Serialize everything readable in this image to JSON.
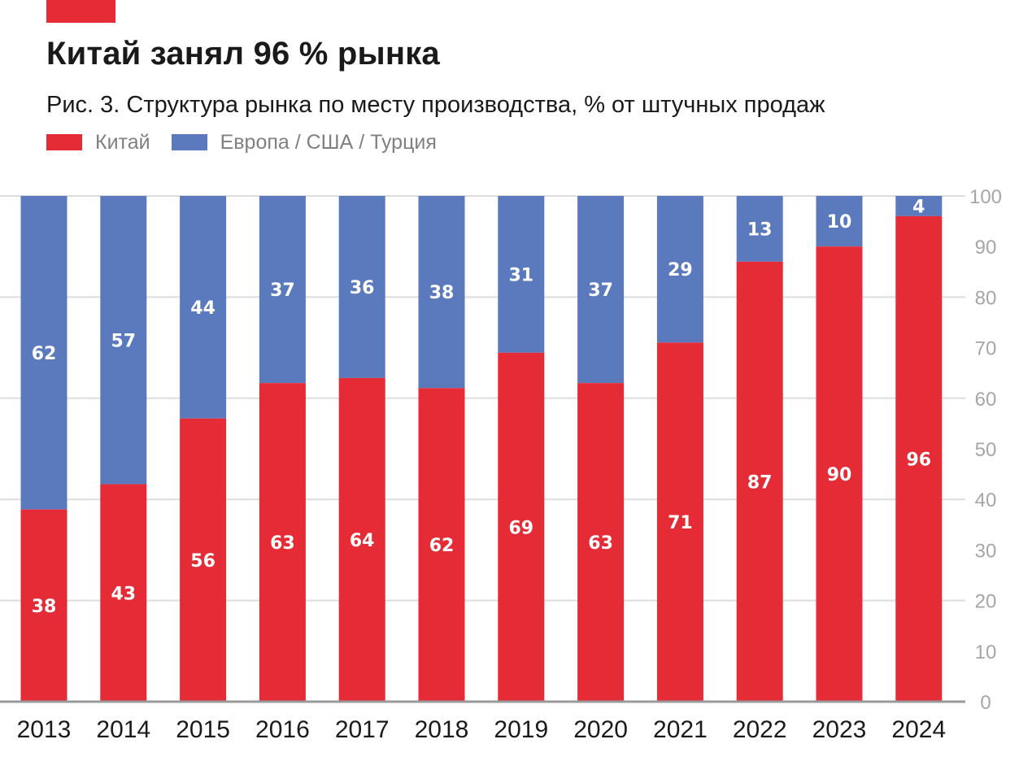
{
  "header": {
    "title": "Китай занял 96 % рынка",
    "subtitle": "Рис. 3. Структура рынка по месту производства, % от штучных продаж"
  },
  "colors": {
    "accent": "#e52b35",
    "china": "#e52b35",
    "europe": "#5b79bd",
    "grid": "#dddddd",
    "axis": "#999999"
  },
  "chart_data": {
    "type": "bar",
    "stacked": true,
    "categories": [
      "2013",
      "2014",
      "2015",
      "2016",
      "2017",
      "2018",
      "2019",
      "2020",
      "2021",
      "2022",
      "2023",
      "2024"
    ],
    "series": [
      {
        "name": "Китай",
        "color": "#e52b35",
        "values": [
          38,
          43,
          56,
          63,
          64,
          62,
          69,
          63,
          71,
          87,
          90,
          96
        ]
      },
      {
        "name": "Европа / США / Турция",
        "color": "#5b79bd",
        "values": [
          62,
          57,
          44,
          37,
          36,
          38,
          31,
          37,
          29,
          13,
          10,
          4
        ]
      }
    ],
    "ylim": [
      0,
      100
    ],
    "yticks": [
      "0",
      "10",
      "20",
      "30",
      "40",
      "50",
      "60",
      "70",
      "80",
      "90",
      "100"
    ],
    "grid": true,
    "legend_position": "top-left",
    "axis_position": "right"
  }
}
